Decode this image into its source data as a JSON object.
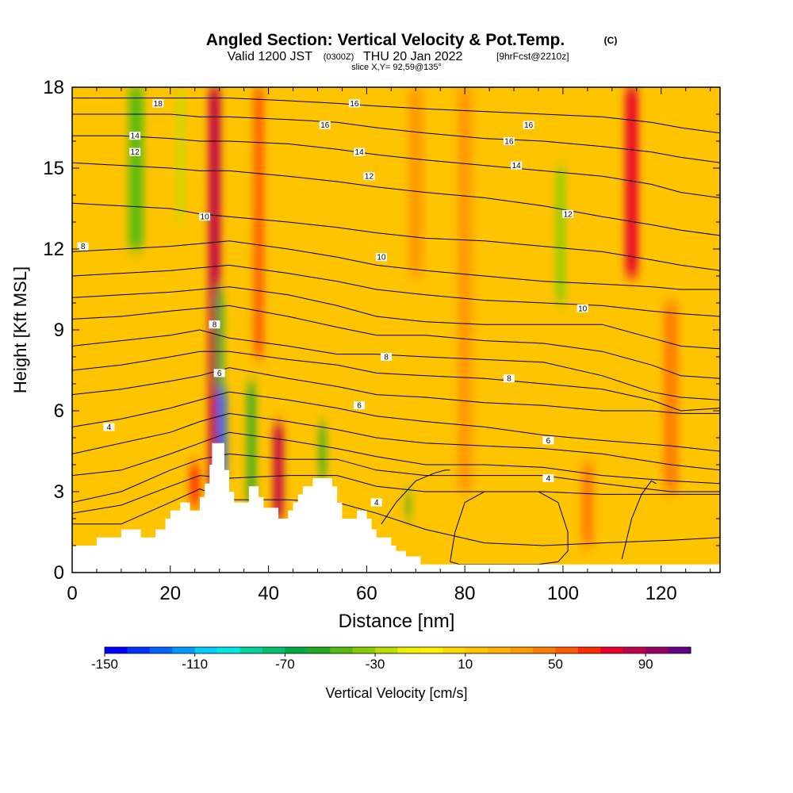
{
  "title": {
    "main": "Angled Section: Vertical Velocity & Pot.Temp.",
    "main_unit": "(C)",
    "valid_prefix": "Valid 1200 JST",
    "valid_z": "(0300Z)",
    "valid_date": "THU 20 Jan 2022",
    "fcst": "[9hrFcst@2210z]",
    "slice": "slice X,Y= 92,59@135°"
  },
  "chart_data": {
    "type": "heatmap",
    "xlabel": "Distance [nm]",
    "ylabel": "Height [Kft MSL]",
    "xlim": [
      0,
      132
    ],
    "ylim": [
      0,
      18
    ],
    "x_ticks": [
      0,
      20,
      40,
      60,
      80,
      100,
      120
    ],
    "y_ticks": [
      0,
      3,
      6,
      9,
      12,
      15,
      18
    ],
    "colorbar": {
      "label": "Vertical Velocity [cm/s]",
      "tick_labels": [
        "-150",
        "-110",
        "-70",
        "-30",
        "10",
        "50",
        "90"
      ],
      "tick_values": [
        -150,
        -110,
        -70,
        -30,
        10,
        50,
        90
      ],
      "range": [
        -150,
        110
      ],
      "step": 10,
      "colors": [
        "#0000ff",
        "#0033ff",
        "#0066ff",
        "#0099ff",
        "#00ccff",
        "#00e5e5",
        "#00d3a0",
        "#00c070",
        "#00aa44",
        "#22aa22",
        "#55bb11",
        "#88cc00",
        "#bbdd00",
        "#eeee00",
        "#ffee00",
        "#ffd700",
        "#ffc400",
        "#ffb000",
        "#ff9900",
        "#ff7d00",
        "#ff5a00",
        "#ff2a00",
        "#e8002a",
        "#c0004a",
        "#990066",
        "#660088"
      ]
    },
    "background_value": 10,
    "updraft_bands": [
      {
        "x_nm": 29,
        "w_nm": 2.4,
        "bottom_kft": 3,
        "top_kft": 18,
        "value": 80
      },
      {
        "x_nm": 42,
        "w_nm": 2.0,
        "bottom_kft": 2,
        "top_kft": 5.5,
        "value": 80
      },
      {
        "x_nm": 38,
        "w_nm": 2.0,
        "bottom_kft": 8,
        "top_kft": 18,
        "value": 50
      },
      {
        "x_nm": 114,
        "w_nm": 2.6,
        "bottom_kft": 11,
        "top_kft": 18,
        "value": 70
      },
      {
        "x_nm": 105,
        "w_nm": 2.5,
        "bottom_kft": 1,
        "top_kft": 4,
        "value": 40
      },
      {
        "x_nm": 80,
        "w_nm": 3,
        "bottom_kft": 3,
        "top_kft": 18,
        "value": 30
      },
      {
        "x_nm": 122,
        "w_nm": 3,
        "bottom_kft": 3,
        "top_kft": 10,
        "value": 40
      },
      {
        "x_nm": 25,
        "w_nm": 2,
        "bottom_kft": 2.5,
        "top_kft": 4,
        "value": 60
      },
      {
        "x_nm": 70,
        "w_nm": 3,
        "bottom_kft": 11,
        "top_kft": 18,
        "value": 30
      }
    ],
    "downdraft_bands": [
      {
        "x_nm": 30.5,
        "w_nm": 1.8,
        "bottom_kft": 3.5,
        "top_kft": 6.8,
        "value": -130
      },
      {
        "x_nm": 30,
        "w_nm": 1.4,
        "bottom_kft": 6.8,
        "top_kft": 10.5,
        "value": -70
      },
      {
        "x_nm": 36.5,
        "w_nm": 1.6,
        "bottom_kft": 2.5,
        "top_kft": 7,
        "value": -60
      },
      {
        "x_nm": 13,
        "w_nm": 3,
        "bottom_kft": 12,
        "top_kft": 18,
        "value": -50
      },
      {
        "x_nm": 99.5,
        "w_nm": 1.8,
        "bottom_kft": 10,
        "top_kft": 15,
        "value": -40
      },
      {
        "x_nm": 51,
        "w_nm": 1.2,
        "bottom_kft": 3.5,
        "top_kft": 5.5,
        "value": -60
      },
      {
        "x_nm": 68.5,
        "w_nm": 0.8,
        "bottom_kft": 2,
        "top_kft": 3,
        "value": -60
      },
      {
        "x_nm": 22,
        "w_nm": 1.2,
        "bottom_kft": 13,
        "top_kft": 18,
        "value": -30
      }
    ],
    "terrain_kft": {
      "x": [
        0,
        4,
        5,
        9,
        10,
        13,
        14,
        16,
        17,
        18,
        19,
        20,
        22,
        24,
        26,
        27,
        28,
        28.5,
        30.5,
        31,
        32,
        33,
        34,
        35,
        36,
        37,
        38,
        39,
        40,
        42,
        43,
        44,
        45,
        46,
        47,
        48,
        49,
        50,
        51,
        52,
        53,
        54,
        55,
        56,
        58,
        59,
        60,
        61,
        62,
        64,
        65,
        66,
        68,
        69,
        70,
        71,
        72,
        132
      ],
      "y": [
        1.0,
        1.0,
        1.3,
        1.3,
        1.6,
        1.6,
        1.3,
        1.3,
        1.6,
        1.6,
        2.0,
        2.3,
        2.6,
        2.3,
        2.8,
        3.3,
        4.0,
        4.8,
        4.8,
        3.8,
        3.0,
        2.6,
        2.6,
        2.6,
        3.2,
        3.2,
        2.8,
        2.4,
        2.4,
        2.0,
        2.0,
        2.3,
        2.6,
        2.9,
        3.2,
        3.2,
        3.5,
        3.5,
        3.5,
        3.5,
        3.2,
        2.6,
        2.0,
        2.0,
        2.3,
        2.3,
        2.0,
        1.6,
        1.3,
        1.3,
        1.0,
        0.8,
        0.6,
        0.6,
        0.6,
        0.3,
        0.3,
        0.3
      ]
    },
    "theta_contours": [
      {
        "x": [
          0,
          10,
          20,
          26,
          32,
          44,
          54,
          62,
          72,
          84,
          96,
          108,
          122,
          132
        ],
        "y": [
          1.8,
          1.8,
          2.6,
          3.1,
          2.7,
          2.7,
          2.6,
          2.2,
          1.6,
          1.1,
          1.0,
          1.1,
          1.2,
          1.3
        ]
      },
      {
        "x": [
          0,
          10,
          20,
          26,
          32,
          44,
          54,
          62,
          72,
          84,
          96,
          108,
          122,
          132
        ],
        "y": [
          2.2,
          2.5,
          3.2,
          3.6,
          3.5,
          3.6,
          3.6,
          3.2,
          3.0,
          3.0,
          3.0,
          2.9,
          2.9,
          2.9
        ]
      },
      {
        "x": [
          0,
          10,
          20,
          26,
          32,
          44,
          54,
          62,
          72,
          84,
          96,
          108,
          122,
          132
        ],
        "y": [
          2.6,
          3.0,
          3.8,
          4.2,
          4.4,
          4.2,
          4.2,
          3.8,
          3.6,
          3.6,
          3.6,
          3.3,
          3.0,
          3.0
        ]
      },
      {
        "x": [
          0,
          10,
          20,
          26,
          32,
          44,
          54,
          62,
          72,
          84,
          96,
          108,
          122,
          132
        ],
        "y": [
          3.6,
          3.8,
          4.4,
          4.8,
          5.2,
          4.9,
          4.6,
          4.3,
          4.0,
          4.0,
          3.9,
          3.6,
          3.4,
          3.3
        ]
      },
      {
        "x": [
          0,
          10,
          20,
          26,
          32,
          44,
          54,
          62,
          72,
          84,
          96,
          108,
          122,
          132
        ],
        "y": [
          4.4,
          4.8,
          5.2,
          5.6,
          5.9,
          5.6,
          5.3,
          5.0,
          4.8,
          4.7,
          4.6,
          4.4,
          4.0,
          3.8
        ]
      },
      {
        "x": [
          0,
          10,
          20,
          26,
          32,
          44,
          54,
          62,
          72,
          84,
          96,
          108,
          122,
          132
        ],
        "y": [
          5.4,
          5.7,
          6.1,
          6.4,
          6.7,
          6.4,
          6.1,
          5.8,
          5.6,
          5.4,
          5.1,
          4.9,
          4.7,
          4.5
        ]
      },
      {
        "x": [
          0,
          10,
          20,
          26,
          32,
          44,
          54,
          62,
          72,
          84,
          96,
          108,
          118,
          124,
          132
        ],
        "y": [
          6.6,
          6.8,
          7.1,
          7.3,
          7.6,
          7.2,
          6.9,
          6.6,
          6.5,
          6.3,
          6.2,
          6.0,
          6.0,
          5.9,
          5.9
        ]
      },
      {
        "x": [
          0,
          10,
          20,
          26,
          32,
          44,
          54,
          62,
          72,
          84,
          96,
          108,
          118,
          124,
          132
        ],
        "y": [
          7.5,
          7.7,
          8.0,
          8.2,
          8.2,
          7.9,
          7.7,
          7.4,
          7.3,
          7.2,
          7.0,
          6.8,
          6.4,
          6.0,
          6.1
        ]
      },
      {
        "x": [
          0,
          10,
          20,
          26,
          32,
          44,
          54,
          62,
          72,
          84,
          96,
          108,
          118,
          124,
          132
        ],
        "y": [
          8.4,
          8.6,
          8.8,
          9.0,
          8.7,
          8.4,
          8.1,
          8.1,
          8.0,
          7.9,
          7.8,
          7.3,
          6.7,
          6.5,
          6.4
        ]
      },
      {
        "x": [
          0,
          10,
          20,
          26,
          32,
          44,
          54,
          62,
          72,
          84,
          96,
          108,
          118,
          124,
          132
        ],
        "y": [
          9.4,
          9.5,
          9.7,
          9.8,
          9.9,
          9.5,
          9.1,
          8.8,
          8.8,
          8.6,
          8.5,
          8.2,
          7.7,
          7.3,
          7.2
        ]
      },
      {
        "x": [
          0,
          10,
          20,
          26,
          32,
          44,
          54,
          62,
          72,
          84,
          96,
          108,
          118,
          124,
          132
        ],
        "y": [
          10.2,
          10.3,
          10.4,
          10.5,
          10.6,
          10.3,
          9.9,
          9.5,
          9.3,
          9.2,
          9.2,
          9.2,
          8.7,
          8.4,
          8.3
        ]
      },
      {
        "x": [
          0,
          10,
          20,
          26,
          32,
          44,
          54,
          62,
          72,
          84,
          96,
          108,
          118,
          124,
          132
        ],
        "y": [
          11.0,
          11.1,
          11.2,
          11.3,
          11.4,
          11.1,
          10.8,
          10.5,
          10.3,
          10.1,
          10.0,
          9.9,
          9.7,
          9.6,
          9.5
        ]
      },
      {
        "x": [
          0,
          10,
          20,
          26,
          32,
          44,
          54,
          62,
          72,
          84,
          96,
          108,
          118,
          124,
          132
        ],
        "y": [
          11.9,
          12.0,
          12.1,
          12.2,
          12.3,
          12.0,
          11.7,
          11.4,
          11.2,
          11.0,
          10.8,
          10.7,
          10.6,
          10.5,
          10.5
        ]
      },
      {
        "x": [
          0,
          10,
          20,
          26,
          32,
          44,
          54,
          62,
          72,
          84,
          96,
          108,
          118,
          124,
          132
        ],
        "y": [
          13.7,
          13.6,
          13.5,
          13.3,
          13.2,
          13.0,
          12.8,
          12.6,
          12.4,
          12.3,
          12.1,
          11.9,
          11.6,
          11.4,
          11.2
        ]
      },
      {
        "x": [
          0,
          10,
          20,
          26,
          32,
          44,
          54,
          62,
          72,
          84,
          96,
          108,
          118,
          124,
          132
        ],
        "y": [
          15.2,
          15.1,
          15.0,
          14.9,
          14.9,
          14.7,
          14.5,
          14.3,
          14.1,
          13.9,
          13.6,
          13.2,
          12.9,
          12.7,
          12.5
        ]
      },
      {
        "x": [
          0,
          10,
          20,
          26,
          32,
          44,
          54,
          62,
          72,
          84,
          96,
          108,
          118,
          124,
          132
        ],
        "y": [
          16.2,
          16.2,
          16.1,
          16.0,
          16.0,
          15.9,
          15.7,
          15.5,
          15.3,
          15.1,
          14.9,
          14.7,
          14.4,
          14.1,
          13.9
        ]
      },
      {
        "x": [
          0,
          10,
          20,
          26,
          32,
          44,
          54,
          62,
          72,
          84,
          96,
          108,
          118,
          124,
          132
        ],
        "y": [
          17.0,
          17.0,
          17.0,
          16.9,
          16.9,
          16.8,
          16.7,
          16.5,
          16.3,
          16.1,
          16.0,
          15.8,
          15.6,
          15.4,
          15.2
        ]
      },
      {
        "x": [
          0,
          10,
          20,
          26,
          32,
          44,
          54,
          62,
          72,
          84,
          96,
          108,
          118,
          124,
          132
        ],
        "y": [
          17.6,
          17.6,
          17.6,
          17.6,
          17.6,
          17.5,
          17.4,
          17.3,
          17.2,
          17.1,
          17.0,
          16.9,
          16.7,
          16.5,
          16.3
        ]
      }
    ],
    "cold_pool_loops": [
      {
        "x": [
          77,
          78,
          80,
          84,
          90,
          95,
          99,
          101,
          101,
          99,
          95,
          89,
          83,
          79,
          77
        ],
        "y": [
          0.4,
          1.5,
          2.6,
          3.0,
          3.0,
          3.0,
          2.6,
          1.5,
          0.8,
          0.4,
          0.3,
          0.3,
          0.3,
          0.3,
          0.4
        ]
      },
      {
        "x": [
          63,
          66,
          70,
          74,
          76,
          77
        ],
        "y": [
          1.8,
          2.6,
          3.4,
          3.7,
          3.8,
          3.8
        ]
      },
      {
        "x": [
          112,
          114,
          116,
          118,
          119
        ],
        "y": [
          0.5,
          2.0,
          2.9,
          3.4,
          3.3
        ]
      }
    ],
    "contour_labels": [
      {
        "text": "18",
        "x": 17.5,
        "y": 17.4
      },
      {
        "text": "16",
        "x": 57.5,
        "y": 17.4
      },
      {
        "text": "16",
        "x": 51.5,
        "y": 16.6
      },
      {
        "text": "16",
        "x": 93,
        "y": 16.6
      },
      {
        "text": "16",
        "x": 89,
        "y": 16.0
      },
      {
        "text": "14",
        "x": 12.8,
        "y": 16.2
      },
      {
        "text": "14",
        "x": 58.5,
        "y": 15.6
      },
      {
        "text": "14",
        "x": 90.5,
        "y": 15.1
      },
      {
        "text": "12",
        "x": 12.8,
        "y": 15.6
      },
      {
        "text": "12",
        "x": 60.5,
        "y": 14.7
      },
      {
        "text": "12",
        "x": 101,
        "y": 13.3
      },
      {
        "text": "10",
        "x": 27,
        "y": 13.2
      },
      {
        "text": "10",
        "x": 63,
        "y": 11.7
      },
      {
        "text": "10",
        "x": 104,
        "y": 9.8
      },
      {
        "text": "8",
        "x": 2.2,
        "y": 12.1
      },
      {
        "text": "8",
        "x": 29,
        "y": 9.2
      },
      {
        "text": "8",
        "x": 64,
        "y": 8.0
      },
      {
        "text": "8",
        "x": 89,
        "y": 7.2
      },
      {
        "text": "6",
        "x": 30,
        "y": 7.4
      },
      {
        "text": "6",
        "x": 58.5,
        "y": 6.2
      },
      {
        "text": "6",
        "x": 97,
        "y": 4.9
      },
      {
        "text": "4",
        "x": 7.5,
        "y": 5.4
      },
      {
        "text": "4",
        "x": 97,
        "y": 3.5
      },
      {
        "text": "4",
        "x": 62,
        "y": 2.6
      }
    ]
  }
}
